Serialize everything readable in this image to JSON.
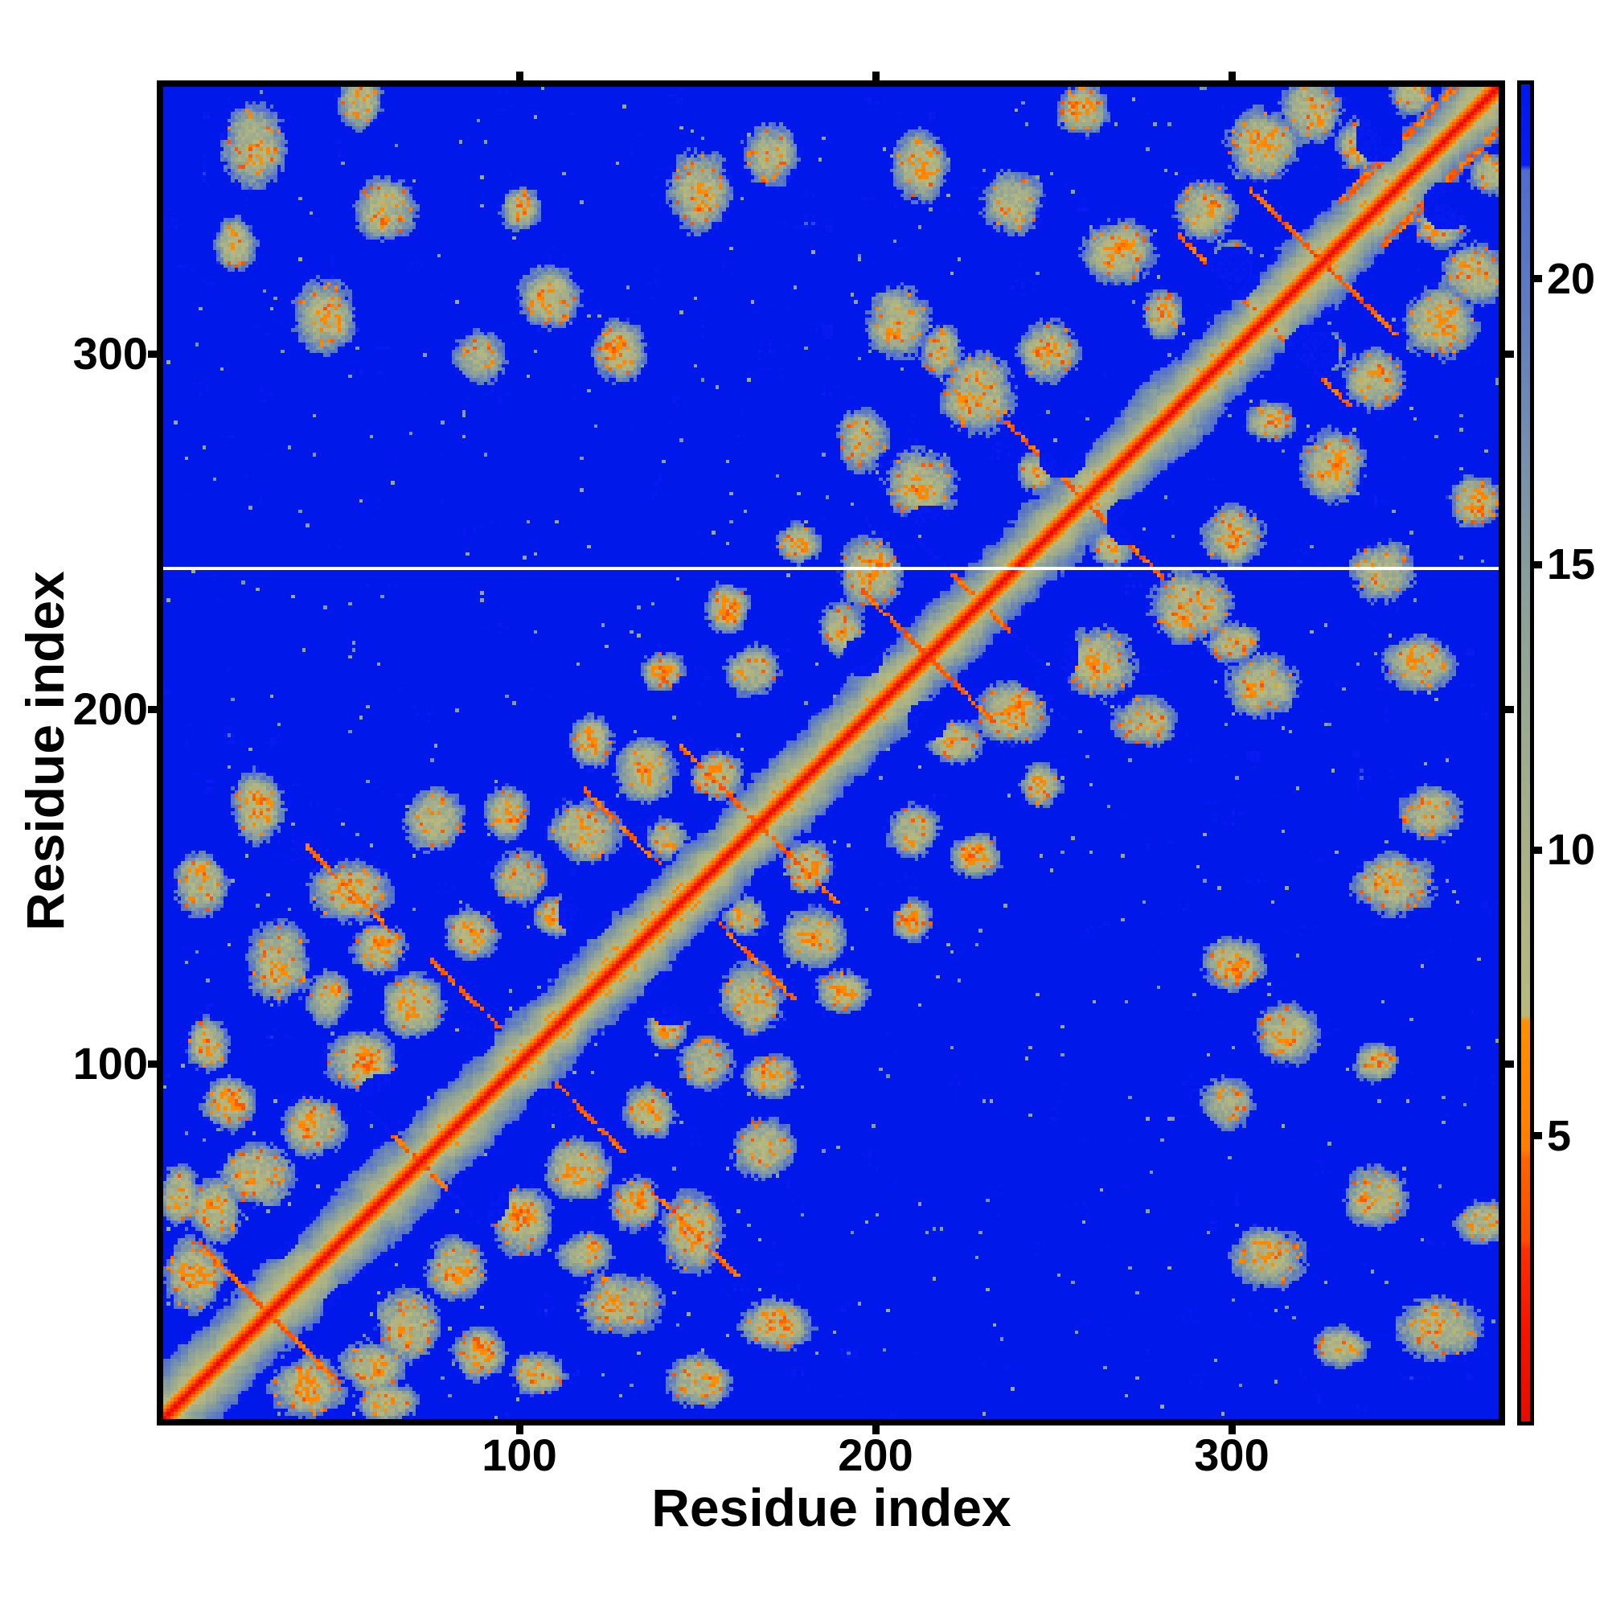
{
  "figure": {
    "background": "#ffffff",
    "frame_color": "#000000",
    "text_color": "#000000"
  },
  "chart_data": {
    "type": "heatmap",
    "title": "",
    "xlabel": "Residue index",
    "ylabel": "Residue index",
    "x_ticks": [
      100,
      200,
      300
    ],
    "y_ticks": [
      100,
      200,
      300
    ],
    "x_tick_labels": [
      "100",
      "200",
      "300"
    ],
    "y_tick_labels": [
      "100",
      "200",
      "300"
    ],
    "x_range": [
      1,
      375
    ],
    "y_range": [
      1,
      375
    ],
    "n_residues": 375,
    "grid": false,
    "legend_position": "none",
    "diagonal_value": 0,
    "white_line_residue": 240,
    "matrix_semantics": "symmetric residue-residue distance matrix; red = short distance (diagonal), blue = long distance",
    "colorbar": {
      "orientation": "vertical",
      "side": "right",
      "vmin": 0,
      "vmax": 23.4,
      "ticks": [
        20,
        15,
        10,
        5
      ],
      "tick_labels": [
        "20",
        "15",
        "10",
        "5"
      ],
      "saturated_blue_above": 22
    },
    "colormap_stops": [
      [
        0.0,
        "#e60c00"
      ],
      [
        1.6,
        "#f61400"
      ],
      [
        3.0,
        "#ff2e00"
      ],
      [
        3.15,
        "#ff4a00"
      ],
      [
        4.6,
        "#ff6400"
      ],
      [
        4.75,
        "#ff7e00"
      ],
      [
        7.0,
        "#ff9000"
      ],
      [
        7.1,
        "#b8ba7c"
      ],
      [
        9.5,
        "#adb284"
      ],
      [
        12.0,
        "#9caa8e"
      ],
      [
        14.5,
        "#8aa09b"
      ],
      [
        17.0,
        "#7590ad"
      ],
      [
        19.5,
        "#5f7cc0"
      ],
      [
        21.9,
        "#4f6cd0"
      ],
      [
        22.0,
        "#0a1cf5"
      ],
      [
        23.4,
        "#0018ea"
      ]
    ],
    "contact_clusters": [
      [
        8,
        40,
        6,
        7
      ],
      [
        14,
        58,
        5,
        6
      ],
      [
        26,
        68,
        7,
        6
      ],
      [
        42,
        82,
        6,
        6
      ],
      [
        18,
        88,
        5,
        5
      ],
      [
        55,
        100,
        7,
        6
      ],
      [
        70,
        116,
        6,
        6
      ],
      [
        32,
        128,
        6,
        8
      ],
      [
        86,
        136,
        5,
        5
      ],
      [
        52,
        148,
        8,
        6
      ],
      [
        100,
        152,
        5,
        5
      ],
      [
        10,
        150,
        5,
        6
      ],
      [
        118,
        165,
        7,
        6
      ],
      [
        76,
        168,
        6,
        6
      ],
      [
        135,
        182,
        6,
        6
      ],
      [
        26,
        172,
        5,
        7
      ],
      [
        60,
        132,
        5,
        5
      ],
      [
        96,
        170,
        4,
        5
      ],
      [
        4,
        62,
        4,
        6
      ],
      [
        46,
        118,
        4,
        5
      ],
      [
        110,
        141,
        4,
        4
      ],
      [
        12,
        105,
        4,
        5
      ],
      [
        141,
        163,
        4,
        4
      ],
      [
        155,
        180,
        5,
        5
      ],
      [
        198,
        238,
        6,
        7
      ],
      [
        212,
        262,
        7,
        7
      ],
      [
        228,
        288,
        7,
        8
      ],
      [
        248,
        300,
        6,
        6
      ],
      [
        206,
        308,
        6,
        7
      ],
      [
        268,
        328,
        7,
        6
      ],
      [
        292,
        340,
        6,
        6
      ],
      [
        308,
        358,
        7,
        7
      ],
      [
        238,
        342,
        6,
        6
      ],
      [
        322,
        368,
        6,
        6
      ],
      [
        212,
        352,
        5,
        7
      ],
      [
        258,
        368,
        5,
        5
      ],
      [
        196,
        275,
        5,
        6
      ],
      [
        280,
        310,
        4,
        5
      ],
      [
        300,
        325,
        4,
        4
      ],
      [
        335,
        358,
        4,
        5
      ],
      [
        245,
        266,
        4,
        4
      ],
      [
        218,
        300,
        4,
        5
      ],
      [
        190,
        222,
        4,
        5
      ],
      [
        350,
        372,
        4,
        4
      ],
      [
        25,
        358,
        6,
        8
      ],
      [
        45,
        310,
        6,
        7
      ],
      [
        62,
        340,
        6,
        6
      ],
      [
        108,
        315,
        6,
        6
      ],
      [
        128,
        300,
        5,
        6
      ],
      [
        88,
        298,
        5,
        5
      ],
      [
        150,
        345,
        6,
        8
      ],
      [
        170,
        355,
        5,
        6
      ],
      [
        20,
        330,
        4,
        5
      ],
      [
        55,
        370,
        4,
        5
      ],
      [
        100,
        340,
        4,
        4
      ],
      [
        165,
        210,
        5,
        5
      ],
      [
        158,
        228,
        4,
        5
      ],
      [
        178,
        246,
        4,
        4
      ],
      [
        140,
        210,
        4,
        4
      ],
      [
        120,
        190,
        4,
        5
      ]
    ],
    "streaks": [
      [
        10,
        48,
        34,
        -1
      ],
      [
        40,
        160,
        25,
        -1
      ],
      [
        75,
        128,
        18,
        -1
      ],
      [
        118,
        176,
        20,
        -1
      ],
      [
        196,
        232,
        22,
        -1
      ],
      [
        236,
        280,
        20,
        -1
      ],
      [
        285,
        332,
        20,
        -1
      ],
      [
        145,
        188,
        24,
        -1
      ],
      [
        330,
        342,
        42,
        1
      ],
      [
        55,
        88,
        16,
        -1
      ],
      [
        210,
        248,
        16,
        -1
      ],
      [
        305,
        345,
        18,
        -1
      ]
    ],
    "blue_voids": [
      [
        30,
        52,
        8
      ],
      [
        62,
        88,
        9
      ],
      [
        118,
        142,
        8
      ],
      [
        215,
        246,
        11
      ],
      [
        252,
        271,
        7
      ],
      [
        300,
        322,
        8
      ],
      [
        341,
        360,
        7
      ],
      [
        150,
        170,
        6
      ],
      [
        86,
        108,
        7
      ],
      [
        196,
        214,
        6
      ]
    ],
    "noise_seed": 7
  }
}
